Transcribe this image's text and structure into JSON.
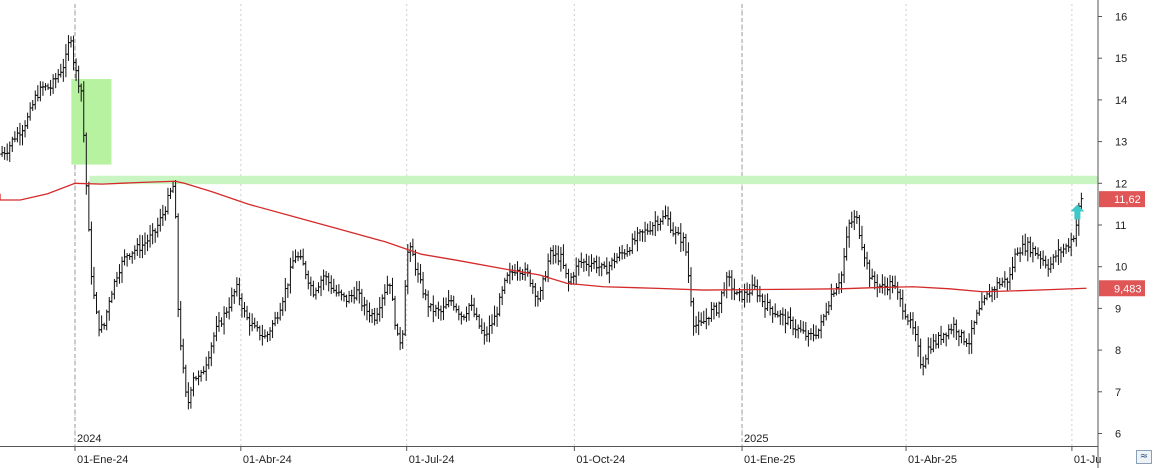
{
  "chart_data": {
    "type": "ohlc",
    "title": "",
    "xlabel": "",
    "ylabel": "",
    "ylim": [
      5.7,
      16.3
    ],
    "y_ticks": [
      "16",
      "15",
      "14",
      "13",
      "12",
      "11",
      "10",
      "9",
      "8",
      "7",
      "6"
    ],
    "x_ticks": [
      {
        "label": "01-Ene-24",
        "day": 0
      },
      {
        "label": "01-Abr-24",
        "day": 91
      },
      {
        "label": "01-Jul-24",
        "day": 182
      },
      {
        "label": "01-Oct-24",
        "day": 274
      },
      {
        "label": "01-Ene-25",
        "day": 366
      },
      {
        "label": "01-Abr-25",
        "day": 456
      },
      {
        "label": "01-Ju",
        "day": 547
      }
    ],
    "year_labels": [
      {
        "label": "2024",
        "day": 0
      },
      {
        "label": "2025",
        "day": 366
      }
    ],
    "price_path": [
      [
        -40,
        12.7
      ],
      [
        -36,
        12.8
      ],
      [
        -32,
        13.1
      ],
      [
        -28,
        13.3
      ],
      [
        -24,
        13.6
      ],
      [
        -20,
        14.1
      ],
      [
        -16,
        14.3
      ],
      [
        -12,
        14.3
      ],
      [
        -8,
        14.6
      ],
      [
        -4,
        14.9
      ],
      [
        -1,
        15.6
      ],
      [
        1,
        14.8
      ],
      [
        5,
        14.2
      ],
      [
        8,
        11.6
      ],
      [
        10,
        10.0
      ],
      [
        12,
        9.2
      ],
      [
        14,
        8.6
      ],
      [
        17,
        8.5
      ],
      [
        20,
        9.2
      ],
      [
        25,
        9.9
      ],
      [
        30,
        10.3
      ],
      [
        38,
        10.5
      ],
      [
        45,
        10.8
      ],
      [
        50,
        11.3
      ],
      [
        54,
        11.8
      ],
      [
        56,
        12.0
      ],
      [
        58,
        9.0
      ],
      [
        60,
        7.8
      ],
      [
        63,
        6.6
      ],
      [
        66,
        7.4
      ],
      [
        70,
        7.3
      ],
      [
        74,
        7.8
      ],
      [
        78,
        8.4
      ],
      [
        84,
        8.9
      ],
      [
        90,
        9.5
      ],
      [
        95,
        8.8
      ],
      [
        100,
        8.5
      ],
      [
        106,
        8.3
      ],
      [
        112,
        8.8
      ],
      [
        118,
        9.6
      ],
      [
        122,
        10.3
      ],
      [
        126,
        10.1
      ],
      [
        132,
        9.4
      ],
      [
        138,
        9.8
      ],
      [
        144,
        9.4
      ],
      [
        150,
        9.2
      ],
      [
        156,
        9.4
      ],
      [
        160,
        9.0
      ],
      [
        166,
        8.8
      ],
      [
        170,
        9.3
      ],
      [
        174,
        9.7
      ],
      [
        176,
        9.0
      ],
      [
        179,
        8.1
      ],
      [
        182,
        8.6
      ],
      [
        183,
        10.3
      ],
      [
        186,
        10.4
      ],
      [
        190,
        9.7
      ],
      [
        196,
        9.0
      ],
      [
        202,
        8.9
      ],
      [
        208,
        9.2
      ],
      [
        214,
        8.8
      ],
      [
        218,
        9.1
      ],
      [
        222,
        8.7
      ],
      [
        226,
        8.3
      ],
      [
        232,
        8.8
      ],
      [
        238,
        9.7
      ],
      [
        244,
        10.0
      ],
      [
        250,
        9.8
      ],
      [
        256,
        9.2
      ],
      [
        262,
        10.3
      ],
      [
        268,
        10.2
      ],
      [
        272,
        9.6
      ],
      [
        278,
        10.1
      ],
      [
        286,
        10.1
      ],
      [
        292,
        9.9
      ],
      [
        298,
        10.2
      ],
      [
        304,
        10.4
      ],
      [
        310,
        10.7
      ],
      [
        316,
        10.9
      ],
      [
        320,
        11.1
      ],
      [
        326,
        11.2
      ],
      [
        330,
        10.8
      ],
      [
        336,
        10.6
      ],
      [
        339,
        9.4
      ],
      [
        341,
        8.6
      ],
      [
        345,
        8.6
      ],
      [
        350,
        8.9
      ],
      [
        354,
        9.0
      ],
      [
        358,
        9.6
      ],
      [
        360,
        9.7
      ],
      [
        364,
        9.3
      ],
      [
        368,
        9.3
      ],
      [
        374,
        9.5
      ],
      [
        380,
        9.1
      ],
      [
        386,
        8.9
      ],
      [
        392,
        8.7
      ],
      [
        398,
        8.5
      ],
      [
        404,
        8.3
      ],
      [
        410,
        8.5
      ],
      [
        416,
        9.3
      ],
      [
        422,
        9.8
      ],
      [
        426,
        11.0
      ],
      [
        430,
        11.2
      ],
      [
        434,
        10.4
      ],
      [
        438,
        9.7
      ],
      [
        444,
        9.5
      ],
      [
        450,
        9.6
      ],
      [
        456,
        9.0
      ],
      [
        462,
        8.4
      ],
      [
        466,
        7.6
      ],
      [
        470,
        8.1
      ],
      [
        474,
        8.2
      ],
      [
        478,
        8.4
      ],
      [
        484,
        8.6
      ],
      [
        488,
        8.3
      ],
      [
        492,
        8.2
      ],
      [
        496,
        8.8
      ],
      [
        502,
        9.3
      ],
      [
        508,
        9.6
      ],
      [
        514,
        9.7
      ],
      [
        518,
        10.4
      ],
      [
        524,
        10.5
      ],
      [
        530,
        10.3
      ],
      [
        536,
        10.0
      ],
      [
        540,
        10.3
      ],
      [
        546,
        10.5
      ],
      [
        550,
        10.8
      ],
      [
        553,
        11.6
      ]
    ],
    "series": [
      {
        "type": "line",
        "color": "#d42a2a",
        "points": [
          [
            -75,
            11.75
          ],
          [
            -60,
            11.7
          ],
          [
            -45,
            11.6
          ],
          [
            -30,
            11.6
          ],
          [
            -15,
            11.75
          ],
          [
            0,
            12.0
          ],
          [
            15,
            11.98
          ],
          [
            35,
            12.02
          ],
          [
            55,
            12.05
          ],
          [
            60,
            12.0
          ],
          [
            75,
            11.8
          ],
          [
            95,
            11.5
          ],
          [
            120,
            11.2
          ],
          [
            145,
            10.9
          ],
          [
            170,
            10.6
          ],
          [
            190,
            10.3
          ],
          [
            210,
            10.15
          ],
          [
            235,
            9.95
          ],
          [
            255,
            9.8
          ],
          [
            270,
            9.6
          ],
          [
            290,
            9.52
          ],
          [
            320,
            9.48
          ],
          [
            345,
            9.44
          ],
          [
            370,
            9.45
          ],
          [
            395,
            9.46
          ],
          [
            420,
            9.47
          ],
          [
            440,
            9.5
          ],
          [
            460,
            9.52
          ],
          [
            480,
            9.47
          ],
          [
            498,
            9.4
          ],
          [
            515,
            9.42
          ],
          [
            535,
            9.45
          ],
          [
            555,
            9.483
          ]
        ]
      }
    ],
    "last_price": {
      "label": "11,62",
      "value": 11.62,
      "color": "#e05555"
    },
    "moving_avg_label": {
      "label": "9,483",
      "value": 9.483,
      "color": "#e05555"
    },
    "zones": [
      {
        "kind": "box",
        "color": "#b7f2a0",
        "x": [
          -2,
          20
        ],
        "y": [
          12.45,
          14.5
        ]
      },
      {
        "kind": "band",
        "color": "#c8f5c2",
        "x": [
          8,
          620
        ],
        "y": [
          11.98,
          12.18
        ]
      }
    ],
    "signals": [
      {
        "kind": "arrow-up",
        "color": "#3ec8c8",
        "day": 550,
        "value": 11.3
      }
    ],
    "colors": {
      "bars": "#111111",
      "grid": "#d8d8d8",
      "axis": "#555555"
    }
  },
  "ui": {
    "corner_icon": "≈"
  }
}
